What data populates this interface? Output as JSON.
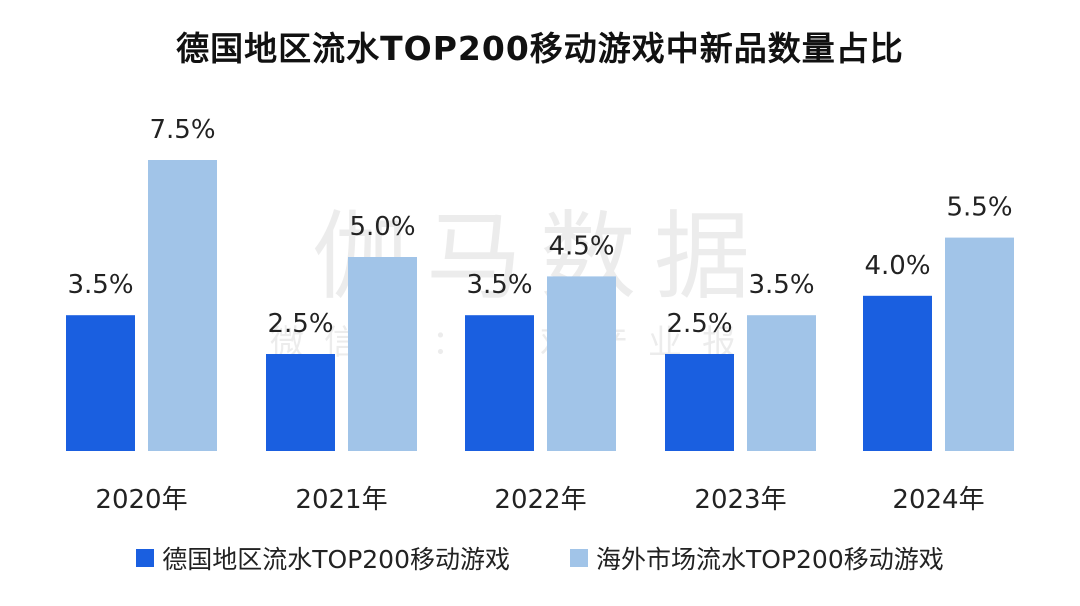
{
  "chart_data": {
    "type": "bar",
    "title": "德国地区流水TOP200移动游戏中新品数量占比",
    "categories": [
      "2020年",
      "2021年",
      "2022年",
      "2023年",
      "2024年"
    ],
    "series": [
      {
        "name": "德国地区流水TOP200移动游戏",
        "values": [
          3.5,
          2.5,
          3.5,
          2.5,
          4.0
        ],
        "labels": [
          "3.5%",
          "2.5%",
          "3.5%",
          "2.5%",
          "4.0%"
        ],
        "color": "#1a5fe0"
      },
      {
        "name": "海外市场流水TOP200移动游戏",
        "values": [
          7.5,
          5.0,
          4.5,
          3.5,
          5.5
        ],
        "labels": [
          "7.5%",
          "5.0%",
          "4.5%",
          "3.5%",
          "5.5%"
        ],
        "color": "#a1c4e8"
      }
    ],
    "xlabel": "",
    "ylabel": "",
    "ylim": [
      0,
      7.5
    ],
    "grid": false,
    "legend": "bottom"
  },
  "watermark": {
    "main": "伽马数据",
    "sub": "微信号：游戏产业报告"
  }
}
